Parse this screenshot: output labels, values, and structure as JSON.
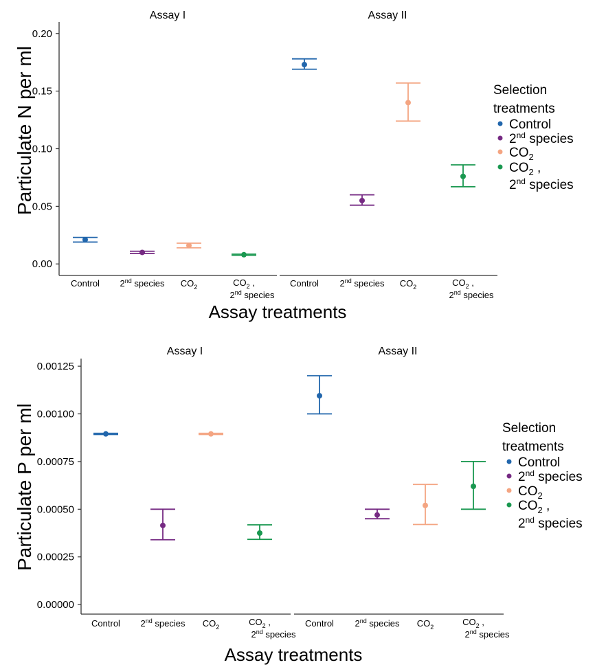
{
  "legend": {
    "title_line1": "Selection",
    "title_line2": "treatments",
    "items": [
      {
        "key": "Control",
        "label": "Control",
        "color": "#2166ac"
      },
      {
        "key": "2nd",
        "label_base": "2",
        "label_sup": "nd",
        "label_rest": "species",
        "color": "#762a83"
      },
      {
        "key": "CO2",
        "label_base": "CO",
        "label_sub": "2",
        "color": "#f4a582"
      },
      {
        "key": "CO2_2nd",
        "label_base": "CO",
        "label_sub": "2",
        "label_comma": ",",
        "line2_base": "2",
        "line2_sup": "nd",
        "line2_rest": "species",
        "color": "#1a9850"
      }
    ]
  },
  "chart_data": [
    {
      "type": "scatter",
      "title": "",
      "xlabel": "Assay treatments",
      "ylabel": "Particulate N per ml",
      "ylim": [
        -0.01,
        0.21
      ],
      "y_ticks": [
        "0.00",
        "0.05",
        "0.10",
        "0.15",
        "0.20"
      ],
      "y_tick_values": [
        0.0,
        0.05,
        0.1,
        0.15,
        0.2
      ],
      "categories": [
        "Control",
        "2nd species",
        "CO2",
        "CO2, 2nd species"
      ],
      "facets": [
        {
          "name": "Assay I",
          "points": [
            {
              "category": "Control",
              "series": "Control",
              "y": 0.021,
              "ymin": 0.019,
              "ymax": 0.023
            },
            {
              "category": "2nd species",
              "series": "2nd species",
              "y": 0.01,
              "ymin": 0.009,
              "ymax": 0.011
            },
            {
              "category": "CO2",
              "series": "CO2",
              "y": 0.016,
              "ymin": 0.014,
              "ymax": 0.018
            },
            {
              "category": "CO2, 2nd species",
              "series": "CO2, 2nd species",
              "y": 0.008,
              "ymin": 0.0075,
              "ymax": 0.0085
            }
          ]
        },
        {
          "name": "Assay II",
          "points": [
            {
              "category": "Control",
              "series": "Control",
              "y": 0.173,
              "ymin": 0.169,
              "ymax": 0.178
            },
            {
              "category": "2nd species",
              "series": "2nd species",
              "y": 0.055,
              "ymin": 0.051,
              "ymax": 0.06
            },
            {
              "category": "CO2",
              "series": "CO2",
              "y": 0.14,
              "ymin": 0.124,
              "ymax": 0.157
            },
            {
              "category": "CO2, 2nd species",
              "series": "CO2, 2nd species",
              "y": 0.076,
              "ymin": 0.067,
              "ymax": 0.086
            }
          ]
        }
      ]
    },
    {
      "type": "scatter",
      "title": "",
      "xlabel": "Assay treatments",
      "ylabel": "Particulate P per ml",
      "ylim": [
        -5e-05,
        0.00129
      ],
      "y_ticks": [
        "0.00000",
        "0.00025",
        "0.00050",
        "0.00075",
        "0.00100",
        "0.00125"
      ],
      "y_tick_values": [
        0.0,
        0.00025,
        0.0005,
        0.00075,
        0.001,
        0.00125
      ],
      "categories": [
        "Control",
        "2nd species",
        "CO2",
        "CO2, 2nd species"
      ],
      "facets": [
        {
          "name": "Assay I",
          "points": [
            {
              "category": "Control",
              "series": "Control",
              "y": 0.000895,
              "ymin": 0.000892,
              "ymax": 0.000898
            },
            {
              "category": "2nd species",
              "series": "2nd species",
              "y": 0.000415,
              "ymin": 0.00034,
              "ymax": 0.0005
            },
            {
              "category": "CO2",
              "series": "CO2",
              "y": 0.000895,
              "ymin": 0.000892,
              "ymax": 0.000898
            },
            {
              "category": "CO2, 2nd species",
              "series": "CO2, 2nd species",
              "y": 0.000375,
              "ymin": 0.000342,
              "ymax": 0.000418
            }
          ]
        },
        {
          "name": "Assay II",
          "points": [
            {
              "category": "Control",
              "series": "Control",
              "y": 0.001095,
              "ymin": 0.001,
              "ymax": 0.0012
            },
            {
              "category": "2nd species",
              "series": "2nd species",
              "y": 0.00047,
              "ymin": 0.00045,
              "ymax": 0.0005
            },
            {
              "category": "CO2",
              "series": "CO2",
              "y": 0.00052,
              "ymin": 0.00042,
              "ymax": 0.00063
            },
            {
              "category": "CO2, 2nd species",
              "series": "CO2, 2nd species",
              "y": 0.00062,
              "ymin": 0.0005,
              "ymax": 0.00075
            }
          ]
        }
      ]
    }
  ]
}
